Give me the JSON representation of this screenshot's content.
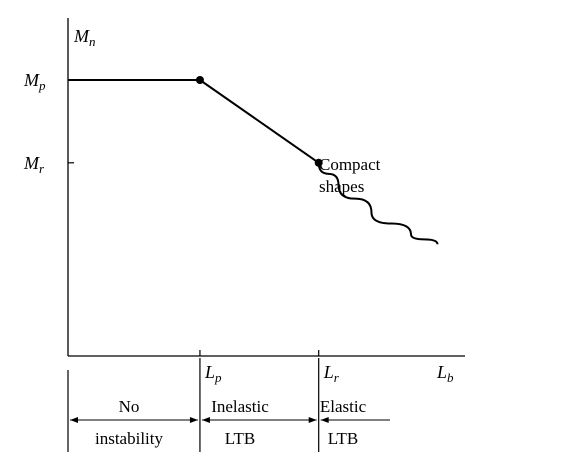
{
  "chart_data": {
    "type": "line",
    "axes": {
      "y_label": "M",
      "y_label_sub": "n",
      "x_label": "L",
      "x_label_sub": "b"
    },
    "y_ticks": [
      {
        "main": "M",
        "sub": "p",
        "value": 1.0
      },
      {
        "main": "M",
        "sub": "r",
        "value": 0.7
      }
    ],
    "x_ticks": [
      {
        "main": "L",
        "sub": "p",
        "value": 1.0
      },
      {
        "main": "L",
        "sub": "r",
        "value": 1.9
      }
    ],
    "series": [
      {
        "segments": [
          {
            "kind": "plateau",
            "x": [
              0,
              1.0
            ],
            "y": [
              1.0,
              1.0
            ]
          },
          {
            "kind": "linear",
            "x": [
              1.0,
              1.9
            ],
            "y": [
              1.0,
              0.7
            ]
          },
          {
            "kind": "elastic-curve",
            "x": [
              1.9,
              2.05,
              2.3,
              2.6,
              2.8
            ],
            "y": [
              0.7,
              0.62,
              0.52,
              0.44,
              0.405
            ]
          }
        ],
        "points": [
          {
            "x": 1.0,
            "y": 1.0
          },
          {
            "x": 1.9,
            "y": 0.7
          }
        ]
      }
    ],
    "annotation": {
      "line1": "Compact",
      "line2": "shapes"
    },
    "regions": [
      {
        "line1": "No",
        "line2": "instability"
      },
      {
        "line1": "Inelastic",
        "line2": "LTB"
      },
      {
        "line1": "Elastic",
        "line2": "LTB"
      }
    ],
    "xlim": [
      0,
      3.6
    ],
    "ylim": [
      0,
      1.25
    ],
    "grid": false
  }
}
